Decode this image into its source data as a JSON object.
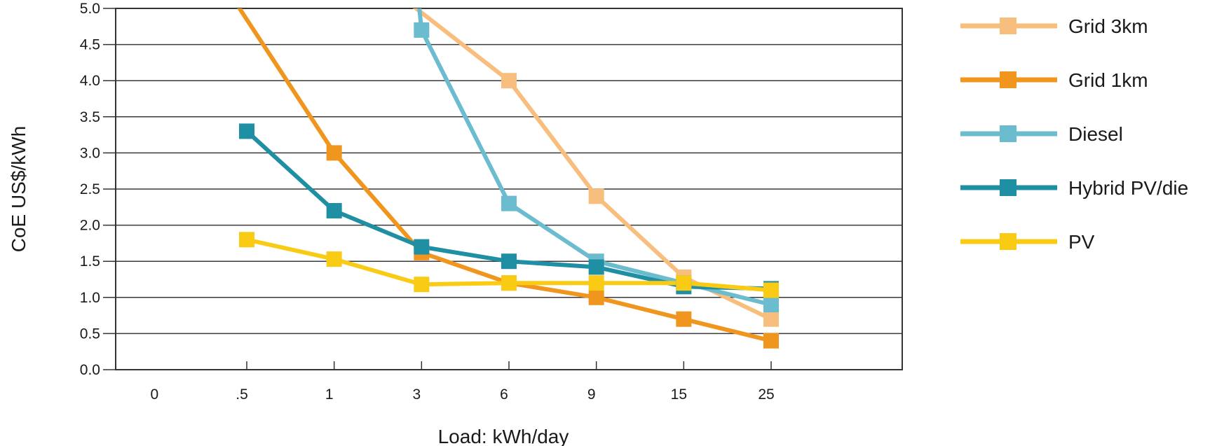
{
  "chart_data": {
    "type": "line",
    "xlabel": "Load: kWh/day",
    "ylabel": "CoE US$/kWh",
    "categories": [
      "0",
      ".5",
      "1",
      "3",
      "6",
      "9",
      "15",
      "25"
    ],
    "y_ticks": [
      "0.0",
      "0.5",
      "1.0",
      "1.5",
      "2.0",
      "2.5",
      "3.0",
      "3.5",
      "4.0",
      "4.5",
      "5.0"
    ],
    "ylim": [
      0,
      5
    ],
    "grid": "horizontal",
    "legend_position": "right",
    "series": [
      {
        "name": "Grid 3km",
        "color": "#F8BE7E",
        "points": [
          {
            "x": 2.8,
            "y": 5.6,
            "marker": false
          },
          {
            "x": 4.5,
            "y": 4.0,
            "marker": true
          },
          {
            "x": 5.5,
            "y": 2.4,
            "marker": true
          },
          {
            "x": 6.5,
            "y": 1.28,
            "marker": true
          },
          {
            "x": 7.5,
            "y": 0.7,
            "marker": true
          }
        ]
      },
      {
        "name": "Grid 1km",
        "color": "#F0951E",
        "points": [
          {
            "x": 1.2,
            "y": 5.4,
            "marker": false
          },
          {
            "x": 2.5,
            "y": 3.0,
            "marker": true
          },
          {
            "x": 3.5,
            "y": 1.62,
            "marker": true
          },
          {
            "x": 4.5,
            "y": 1.2,
            "marker": true
          },
          {
            "x": 5.5,
            "y": 1.0,
            "marker": true
          },
          {
            "x": 6.5,
            "y": 0.7,
            "marker": true
          },
          {
            "x": 7.5,
            "y": 0.4,
            "marker": true
          }
        ]
      },
      {
        "name": "Diesel",
        "color": "#6BBCCE",
        "points": [
          {
            "x": 3.45,
            "y": 5.3,
            "marker": false
          },
          {
            "x": 3.5,
            "y": 4.7,
            "marker": true
          },
          {
            "x": 4.5,
            "y": 2.3,
            "marker": true
          },
          {
            "x": 5.5,
            "y": 1.5,
            "marker": true
          },
          {
            "x": 6.5,
            "y": 1.2,
            "marker": true
          },
          {
            "x": 7.5,
            "y": 0.9,
            "marker": true
          }
        ]
      },
      {
        "name": "Hybrid PV/die",
        "color": "#1F8FA4",
        "points": [
          {
            "x": 1.5,
            "y": 3.3,
            "marker": true
          },
          {
            "x": 2.5,
            "y": 2.2,
            "marker": true
          },
          {
            "x": 3.5,
            "y": 1.7,
            "marker": true
          },
          {
            "x": 4.5,
            "y": 1.5,
            "marker": true
          },
          {
            "x": 5.5,
            "y": 1.42,
            "marker": true
          },
          {
            "x": 6.5,
            "y": 1.15,
            "marker": true
          },
          {
            "x": 7.5,
            "y": 1.12,
            "marker": true
          }
        ]
      },
      {
        "name": "PV",
        "color": "#FACB14",
        "points": [
          {
            "x": 1.5,
            "y": 1.8,
            "marker": true
          },
          {
            "x": 2.5,
            "y": 1.53,
            "marker": true
          },
          {
            "x": 3.5,
            "y": 1.18,
            "marker": true
          },
          {
            "x": 4.5,
            "y": 1.2,
            "marker": true
          },
          {
            "x": 5.5,
            "y": 1.2,
            "marker": true
          },
          {
            "x": 6.5,
            "y": 1.2,
            "marker": true
          },
          {
            "x": 7.5,
            "y": 1.1,
            "marker": true
          }
        ]
      }
    ]
  }
}
